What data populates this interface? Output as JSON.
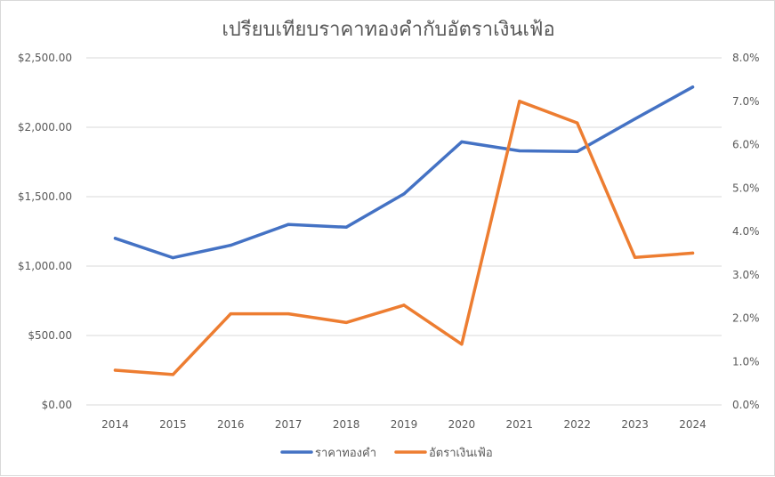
{
  "chart_data": {
    "type": "line",
    "title": "เปรียบเทียบราคาทองคำกับอัตราเงินเฟ้อ",
    "x": [
      "2014",
      "2015",
      "2016",
      "2017",
      "2018",
      "2019",
      "2020",
      "2021",
      "2022",
      "2023",
      "2024"
    ],
    "series": [
      {
        "name": "ราคาทองคำ",
        "axis": "left",
        "color": "#4472C4",
        "values": [
          1200,
          1060,
          1150,
          1300,
          1280,
          1520,
          1895,
          1830,
          1825,
          2060,
          2290
        ]
      },
      {
        "name": "อัตราเงินเฟ้อ",
        "axis": "right",
        "color": "#ED7D31",
        "values": [
          0.8,
          0.7,
          2.1,
          2.1,
          1.9,
          2.3,
          1.4,
          7.0,
          6.5,
          3.4,
          3.5
        ]
      }
    ],
    "y_left": {
      "min": 0,
      "max": 2500,
      "ticks": [
        0,
        500,
        1000,
        1500,
        2000,
        2500
      ],
      "tick_labels": [
        "$0.00",
        "$500.00",
        "$1,000.00",
        "$1,500.00",
        "$2,000.00",
        "$2,500.00"
      ]
    },
    "y_right": {
      "min": 0,
      "max": 8,
      "ticks": [
        0,
        1,
        2,
        3,
        4,
        5,
        6,
        7,
        8
      ],
      "tick_labels": [
        "0.0%",
        "1.0%",
        "2.0%",
        "3.0%",
        "4.0%",
        "5.0%",
        "6.0%",
        "7.0%",
        "8.0%"
      ]
    },
    "grid": true,
    "legend_position": "bottom",
    "gridline_color": "#d9d9d9"
  }
}
